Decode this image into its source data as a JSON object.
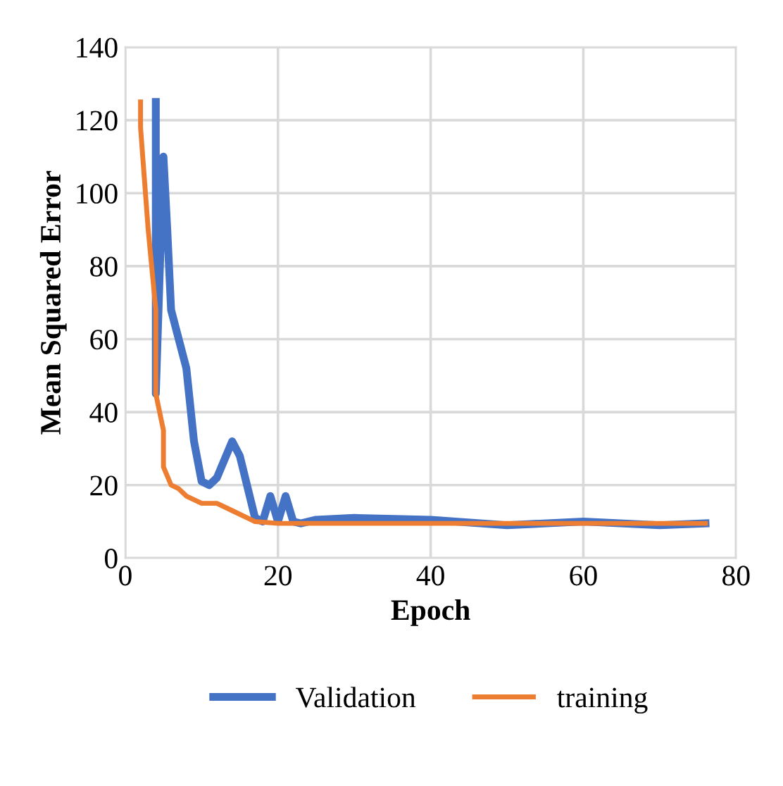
{
  "chart_data": {
    "type": "line",
    "xlabel": "Epoch",
    "ylabel": "Mean Squared Error",
    "xlim": [
      0,
      80
    ],
    "xticks": [
      0,
      20,
      40,
      60,
      80
    ],
    "ylim": [
      0,
      140
    ],
    "yticks": [
      0,
      20,
      40,
      60,
      80,
      100,
      120,
      140
    ],
    "grid": true,
    "legend": "bottom",
    "series": [
      {
        "name": "Validation",
        "color": "#4472c4",
        "x": [
          4,
          4,
          5,
          5.5,
          6,
          8,
          9,
          10,
          11,
          12,
          14,
          15,
          17,
          18,
          19,
          20,
          21,
          22,
          23,
          25,
          30,
          40,
          50,
          60,
          70,
          76
        ],
        "values": [
          125,
          45,
          110,
          90,
          68,
          52,
          32,
          21,
          20,
          22,
          32,
          28,
          11,
          10,
          17,
          10,
          17,
          10,
          9.5,
          10.5,
          11,
          10.5,
          9,
          10,
          9,
          9.5
        ]
      },
      {
        "name": "training",
        "color": "#ed7d31",
        "x": [
          2,
          2,
          3,
          4,
          4,
          5,
          5,
          6,
          7,
          8,
          10,
          12,
          14,
          16,
          17,
          20,
          76
        ],
        "values": [
          125,
          118,
          90,
          68,
          45,
          35,
          25,
          20,
          19,
          17,
          15,
          15,
          13,
          11,
          10,
          9.5,
          9.5
        ]
      }
    ]
  }
}
